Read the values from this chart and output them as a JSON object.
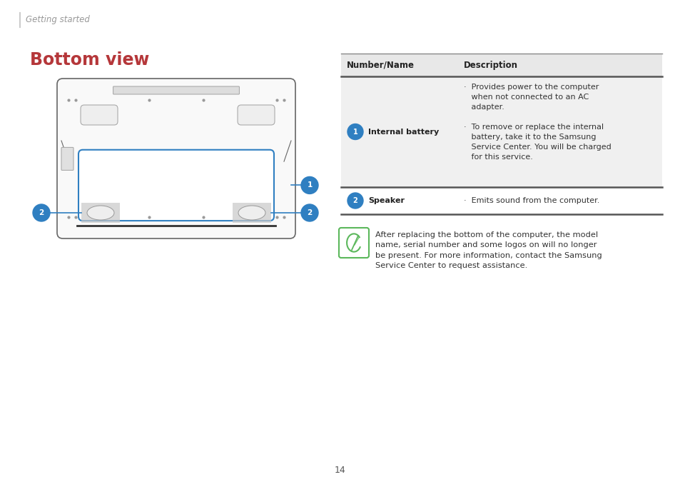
{
  "bg_color": "#ffffff",
  "page_num": "14",
  "header_text": "Getting started",
  "section_title": "Bottom view",
  "section_title_color": "#b5373a",
  "table_header_bg": "#e8e8e8",
  "table_row1_bg": "#f0f0f0",
  "table_row2_bg": "#ffffff",
  "col_header": [
    "Number/Name",
    "Description"
  ],
  "note_text": "After replacing the bottom of the computer, the model\nname, serial number and some logos on will no longer\nbe present. For more information, contact the Samsung\nService Center to request assistance.",
  "badge_color": "#2f7fc1",
  "laptop_outline_color": "#666666",
  "battery_outline_color": "#2f7fc1",
  "green_icon_color": "#5cb85c"
}
